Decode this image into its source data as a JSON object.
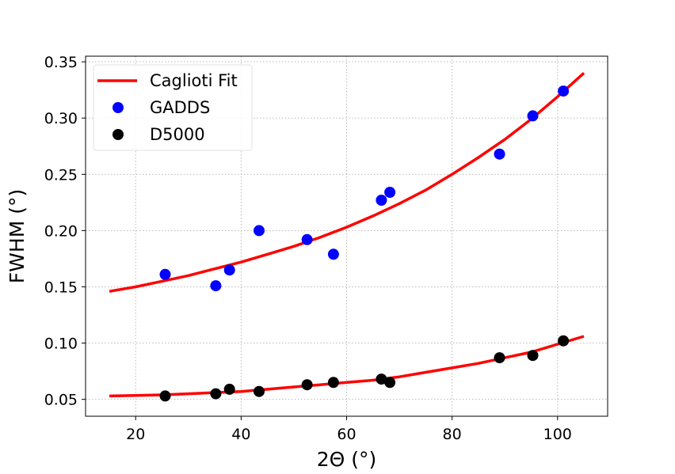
{
  "chart_data": {
    "type": "scatter",
    "xlabel": "2Θ (°)",
    "ylabel": "FWHM (°)",
    "xlim": [
      10.5,
      109.5
    ],
    "ylim": [
      0.035,
      0.355
    ],
    "xticks": [
      20,
      40,
      60,
      80,
      100
    ],
    "yticks": [
      0.05,
      0.1,
      0.15,
      0.2,
      0.25,
      0.3,
      0.35
    ],
    "grid": true,
    "legend_position": "top-left",
    "series": [
      {
        "name": "Caglioti Fit",
        "kind": "line",
        "color": "#ff0000",
        "curves": [
          {
            "x": [
              15,
              20,
              25,
              30,
              35,
              40,
              45,
              50,
              55,
              60,
              65,
              70,
              75,
              80,
              85,
              90,
              95,
              100,
              105
            ],
            "y": [
              0.146,
              0.15,
              0.155,
              0.16,
              0.166,
              0.172,
              0.179,
              0.186,
              0.194,
              0.203,
              0.213,
              0.224,
              0.236,
              0.25,
              0.265,
              0.281,
              0.299,
              0.319,
              0.34
            ]
          },
          {
            "x": [
              15,
              20,
              25,
              30,
              35,
              40,
              45,
              50,
              55,
              60,
              65,
              70,
              75,
              80,
              85,
              90,
              95,
              100,
              105
            ],
            "y": [
              0.053,
              0.0535,
              0.054,
              0.055,
              0.056,
              0.057,
              0.059,
              0.061,
              0.063,
              0.065,
              0.067,
              0.07,
              0.074,
              0.078,
              0.082,
              0.087,
              0.092,
              0.099,
              0.106
            ]
          }
        ]
      },
      {
        "name": "GADDS",
        "kind": "scatter",
        "color": "#0000ff",
        "x": [
          25.6,
          35.2,
          37.8,
          43.4,
          52.5,
          57.5,
          66.6,
          68.2,
          89.0,
          95.3,
          101.1
        ],
        "y": [
          0.161,
          0.151,
          0.165,
          0.2,
          0.192,
          0.179,
          0.227,
          0.234,
          0.268,
          0.302,
          0.324
        ]
      },
      {
        "name": "D5000",
        "kind": "scatter",
        "color": "#000000",
        "x": [
          25.6,
          35.2,
          37.8,
          43.4,
          52.5,
          57.5,
          66.6,
          68.2,
          89.0,
          95.3,
          101.1
        ],
        "y": [
          0.053,
          0.055,
          0.059,
          0.057,
          0.063,
          0.065,
          0.068,
          0.065,
          0.087,
          0.089,
          0.102
        ]
      }
    ]
  }
}
